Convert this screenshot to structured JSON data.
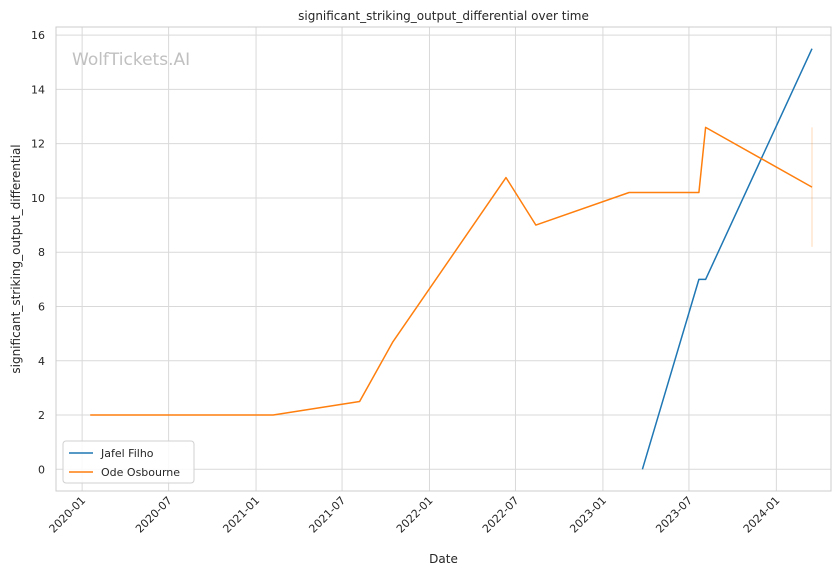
{
  "chart_data": {
    "type": "line",
    "title": "significant_striking_output_differential over time",
    "xlabel": "Date",
    "ylabel": "significant_striking_output_differential",
    "watermark": "WolfTickets.AI",
    "x_axis_kind": "date",
    "xlim": [
      "2019-11-07",
      "2024-04-25"
    ],
    "ylim": [
      -0.8,
      16.3
    ],
    "x_ticks": [
      "2020-01",
      "2020-07",
      "2021-01",
      "2021-07",
      "2022-01",
      "2022-07",
      "2023-01",
      "2023-07",
      "2024-01"
    ],
    "y_ticks": [
      0,
      2,
      4,
      6,
      8,
      10,
      12,
      14,
      16
    ],
    "grid": true,
    "legend_position": "lower-left",
    "series": [
      {
        "name": "Jafel Filho",
        "color": "#1f77b4",
        "points": [
          {
            "x": "2023-03-25",
            "y": 0
          },
          {
            "x": "2023-07-22",
            "y": 7.0
          },
          {
            "x": "2023-08-05",
            "y": 7.0
          },
          {
            "x": "2024-03-16",
            "y": 15.5
          }
        ]
      },
      {
        "name": "Ode Osbourne",
        "color": "#ff7f0e",
        "points": [
          {
            "x": "2020-01-18",
            "y": 2.0
          },
          {
            "x": "2021-02-06",
            "y": 2.0
          },
          {
            "x": "2021-08-07",
            "y": 2.5
          },
          {
            "x": "2021-10-16",
            "y": 4.7
          },
          {
            "x": "2022-06-11",
            "y": 10.75
          },
          {
            "x": "2022-08-13",
            "y": 9.0
          },
          {
            "x": "2023-02-25",
            "y": 10.2
          },
          {
            "x": "2023-07-22",
            "y": 10.2
          },
          {
            "x": "2023-08-05",
            "y": 12.6
          },
          {
            "x": "2024-03-16",
            "y": 10.4
          }
        ],
        "error_bar": {
          "x": "2024-03-16",
          "low": 8.2,
          "high": 12.6
        }
      }
    ]
  }
}
